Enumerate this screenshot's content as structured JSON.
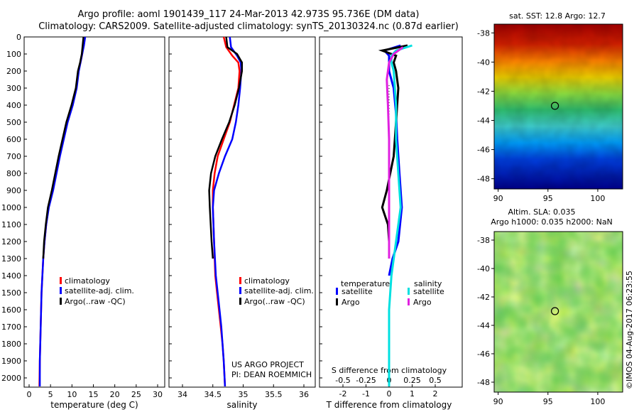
{
  "header": {
    "title_line1": "Argo profile: aoml 1901439_117 24-Mar-2013 42.973S 95.736E (DM data)",
    "title_line2": "Climatology: CARS2009. Satellite-adjusted climatology: synTS_20130324.nc (0.87d earlier)"
  },
  "colors": {
    "climatology": "#ff0000",
    "satellite": "#0000ff",
    "argo": "#000000",
    "sat_salinity": "#00e0e0",
    "argo_salinity": "#e020e0"
  },
  "chart_data": [
    {
      "id": "temperature",
      "type": "line",
      "xlabel": "temperature (deg C)",
      "xlim": [
        -2,
        32
      ],
      "xticks": [
        0,
        5,
        10,
        15,
        20,
        25,
        30
      ],
      "ylim": [
        2080,
        0
      ],
      "yticks": [
        0,
        100,
        200,
        300,
        400,
        500,
        600,
        700,
        800,
        900,
        1000,
        1100,
        1200,
        1300,
        1400,
        1500,
        1600,
        1700,
        1800,
        1900,
        2000
      ],
      "legend": [
        "climatology",
        "satellite-adj. clim.",
        "Argo(..raw -QC)"
      ],
      "series": [
        {
          "name": "climatology",
          "color": "#ff0000",
          "x": [
            12.8,
            12.6,
            12.4,
            12.0,
            11.5,
            11.0,
            10.0,
            8.8,
            7.0,
            5.5,
            4.5,
            4.0,
            3.6,
            3.3,
            3.1,
            2.9,
            2.8,
            2.7,
            2.6,
            2.5,
            2.4
          ],
          "y": [
            0,
            50,
            100,
            150,
            200,
            300,
            400,
            500,
            700,
            900,
            1000,
            1100,
            1200,
            1300,
            1400,
            1500,
            1600,
            1700,
            1800,
            1900,
            2050
          ]
        },
        {
          "name": "satellite-adj. clim.",
          "color": "#0000ff",
          "x": [
            13.1,
            12.8,
            12.4,
            12.0,
            11.6,
            11.1,
            10.2,
            9.0,
            7.2,
            5.6,
            4.6,
            4.0,
            3.6,
            3.3,
            3.1,
            2.9,
            2.8,
            2.7,
            2.6,
            2.5,
            2.5
          ],
          "y": [
            0,
            50,
            100,
            150,
            200,
            300,
            400,
            500,
            700,
            900,
            1000,
            1100,
            1200,
            1300,
            1400,
            1500,
            1600,
            1700,
            1800,
            1900,
            2050
          ]
        },
        {
          "name": "Argo(..raw -QC)",
          "color": "#000000",
          "x": [
            12.7,
            12.5,
            12.3,
            11.9,
            11.4,
            10.9,
            9.9,
            8.7,
            6.9,
            5.3,
            4.4,
            3.9,
            3.5,
            3.3
          ],
          "y": [
            0,
            50,
            100,
            150,
            200,
            300,
            400,
            500,
            700,
            900,
            1000,
            1100,
            1200,
            1300
          ]
        }
      ]
    },
    {
      "id": "salinity",
      "type": "line",
      "xlabel": "salinity",
      "xlim": [
        33.8,
        36.2
      ],
      "xticks": [
        34,
        34.5,
        35,
        35.5,
        36
      ],
      "ylim": [
        2080,
        0
      ],
      "legend": [
        "climatology",
        "satellite-adj. clim.",
        "Argo(..raw -QC)"
      ],
      "annotation": [
        "US ARGO PROJECT",
        "PI: DEAN ROEMMICH"
      ],
      "series": [
        {
          "name": "climatology",
          "color": "#ff0000",
          "x": [
            34.68,
            34.72,
            34.82,
            34.92,
            34.94,
            34.92,
            34.85,
            34.78,
            34.68,
            34.58,
            34.53,
            34.5,
            34.5,
            34.52,
            34.54,
            34.57,
            34.6,
            34.63,
            34.66,
            34.68,
            34.7
          ],
          "y": [
            0,
            60,
            110,
            150,
            200,
            300,
            400,
            500,
            600,
            700,
            800,
            900,
            1000,
            1200,
            1400,
            1500,
            1600,
            1700,
            1800,
            1900,
            2050
          ]
        },
        {
          "name": "satellite-adj. clim.",
          "color": "#0000ff",
          "x": [
            34.78,
            34.8,
            34.9,
            34.96,
            34.97,
            34.95,
            34.92,
            34.88,
            34.82,
            34.7,
            34.6,
            34.52,
            34.5,
            34.52,
            34.55,
            34.58,
            34.61,
            34.64,
            34.66,
            34.68,
            34.7
          ],
          "y": [
            0,
            60,
            110,
            150,
            200,
            300,
            400,
            500,
            600,
            700,
            800,
            900,
            1000,
            1200,
            1400,
            1500,
            1600,
            1700,
            1800,
            1900,
            2050
          ]
        },
        {
          "name": "Argo(..raw -QC)",
          "color": "#000000",
          "x": [
            34.72,
            34.74,
            34.9,
            34.98,
            34.98,
            34.93,
            34.86,
            34.77,
            34.65,
            34.54,
            34.47,
            34.44,
            34.45,
            34.48,
            34.5
          ],
          "y": [
            0,
            60,
            100,
            150,
            200,
            300,
            400,
            500,
            600,
            700,
            800,
            900,
            1000,
            1200,
            1300
          ]
        }
      ]
    },
    {
      "id": "difference",
      "type": "line",
      "xlabel": "T difference from climatology",
      "xlabel_top": "S difference from climatology",
      "xlim": [
        -3,
        3
      ],
      "xticks": [
        -2,
        -1,
        0,
        1,
        2
      ],
      "xticks_top": [
        -0.5,
        -0.25,
        0,
        0.25,
        0.5
      ],
      "ylim": [
        2080,
        0
      ],
      "legend_left_title": "temperature",
      "legend_right_title": "salinity",
      "legend": [
        "satellite",
        "Argo",
        "satellite",
        "Argo"
      ],
      "series": [
        {
          "name": "satellite",
          "group": "temperature",
          "color": "#0000ff",
          "x": [
            0.5,
            -0.2,
            0.0,
            0.0,
            0.0,
            0.2,
            0.3,
            0.35,
            0.45,
            0.55,
            0.4,
            0.15,
            0.0
          ],
          "y": [
            50,
            80,
            110,
            150,
            200,
            300,
            450,
            600,
            800,
            1000,
            1200,
            1300,
            1400
          ]
        },
        {
          "name": "Argo",
          "group": "temperature",
          "color": "#000000",
          "x": [
            0.8,
            -0.3,
            0.3,
            0.2,
            0.3,
            0.4,
            0.3,
            0.2,
            -0.1,
            -0.3,
            -0.05,
            0.0,
            0.0
          ],
          "y": [
            50,
            80,
            110,
            150,
            200,
            300,
            500,
            700,
            900,
            1000,
            1100,
            1200,
            1300
          ]
        },
        {
          "name": "satellite",
          "group": "salinity",
          "color": "#00e0e0",
          "x": [
            1.0,
            0.3,
            0.1,
            0.1,
            0.2,
            0.3,
            0.3,
            0.4,
            0.5,
            0.3,
            0.1,
            0.0,
            0.0
          ],
          "y": [
            50,
            80,
            110,
            150,
            200,
            400,
            600,
            800,
            1000,
            1200,
            1400,
            1600,
            2050
          ]
        },
        {
          "name": "Argo",
          "group": "salinity",
          "color": "#e020e0",
          "x": [
            0.6,
            0.2,
            0.0,
            -0.1,
            -0.05,
            0.0,
            0.0,
            0.0,
            0.0
          ],
          "y": [
            60,
            100,
            150,
            250,
            400,
            600,
            800,
            1000,
            1300
          ]
        }
      ]
    },
    {
      "id": "sst_map",
      "type": "heatmap",
      "title": "sat. SST: 12.8 Argo: 12.7",
      "xticks": [
        90,
        95,
        100
      ],
      "yticks": [
        -38,
        -40,
        -42,
        -44,
        -46,
        -48
      ],
      "xlim": [
        89,
        103
      ],
      "ylim": [
        -49,
        -37
      ],
      "marker": {
        "lon": 95.7,
        "lat": -43.0
      }
    },
    {
      "id": "sla_map",
      "type": "heatmap",
      "title_line1": "Altim. SLA: 0.035",
      "title_line2": "Argo h1000: 0.035 h2000: NaN",
      "xticks": [
        90,
        95,
        100
      ],
      "yticks": [
        -38,
        -40,
        -42,
        -44,
        -46,
        -48
      ],
      "xlim": [
        89,
        103
      ],
      "ylim": [
        -49,
        -37
      ],
      "marker": {
        "lon": 95.7,
        "lat": -43.0
      }
    }
  ],
  "credit": "©IMOS 04-Aug-2017 06:23:55"
}
